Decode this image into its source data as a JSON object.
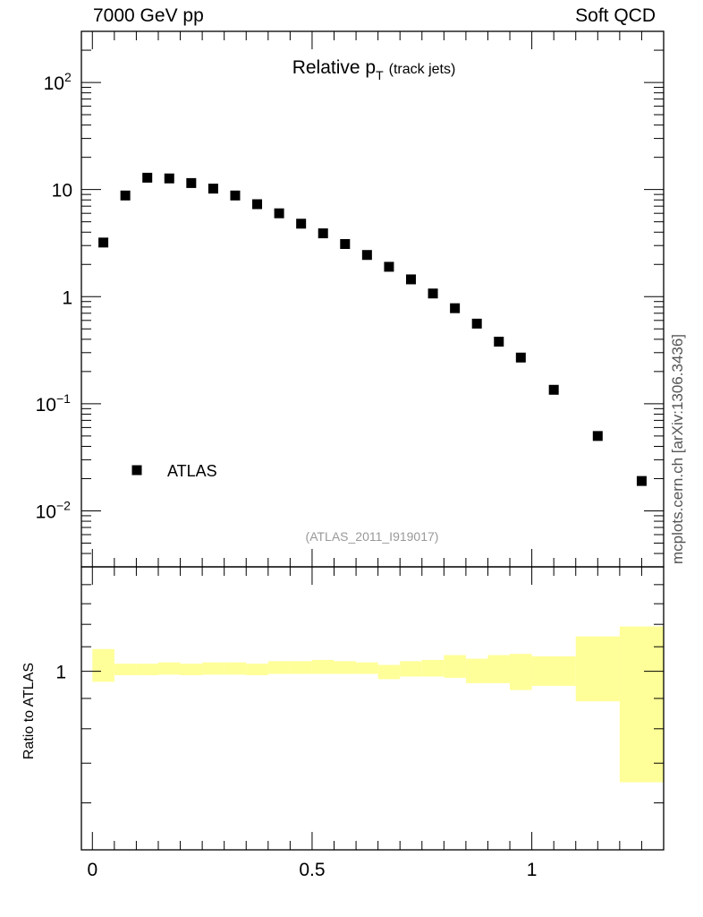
{
  "header": {
    "left": "7000 GeV pp",
    "right": "Soft QCD"
  },
  "side_label": "mcplots.cern.ch [arXiv:1306.3436]",
  "chart_data": [
    {
      "type": "scatter",
      "title": "Relative p",
      "title_subscript": "T",
      "title_suffix": "(track jets)",
      "watermark": "(ATLAS_2011_I919017)",
      "y_scale": "log",
      "ylim": [
        0.003,
        300
      ],
      "xlim": [
        -0.025,
        1.3
      ],
      "y_ticks": [
        {
          "value": 100,
          "base": "10",
          "exp": "2"
        },
        {
          "value": 10,
          "base": "10",
          "exp": ""
        },
        {
          "value": 1,
          "base": "1",
          "exp": ""
        },
        {
          "value": 0.1,
          "base": "10",
          "exp": "−1"
        },
        {
          "value": 0.01,
          "base": "10",
          "exp": "−2"
        }
      ],
      "legend": {
        "position": "bottom-left",
        "entries": [
          "ATLAS"
        ]
      },
      "series": [
        {
          "name": "ATLAS",
          "color": "#000000",
          "marker": "square",
          "x": [
            0.025,
            0.075,
            0.125,
            0.175,
            0.225,
            0.275,
            0.325,
            0.375,
            0.425,
            0.475,
            0.525,
            0.575,
            0.625,
            0.675,
            0.725,
            0.775,
            0.825,
            0.875,
            0.925,
            0.975,
            1.05,
            1.15,
            1.25
          ],
          "y": [
            3.2,
            8.8,
            12.9,
            12.7,
            11.5,
            10.2,
            8.8,
            7.3,
            6.0,
            4.8,
            3.9,
            3.1,
            2.45,
            1.9,
            1.45,
            1.07,
            0.78,
            0.56,
            0.38,
            0.27,
            0.135,
            0.05,
            0.019
          ]
        }
      ]
    },
    {
      "type": "area",
      "ylabel": "Ratio to ATLAS",
      "y_scale": "log",
      "ylim": [
        0.5,
        1.5
      ],
      "y_ticks": [
        {
          "value": 1,
          "label": "1"
        }
      ],
      "xlim": [
        -0.025,
        1.3
      ],
      "x_ticks": [
        {
          "value": 0,
          "label": "0"
        },
        {
          "value": 0.5,
          "label": "0.5"
        },
        {
          "value": 1,
          "label": "1"
        }
      ],
      "band_color": "#ffff99",
      "band": {
        "edges": [
          0,
          0.05,
          0.1,
          0.15,
          0.2,
          0.25,
          0.3,
          0.35,
          0.4,
          0.45,
          0.5,
          0.55,
          0.6,
          0.65,
          0.7,
          0.75,
          0.8,
          0.85,
          0.9,
          0.95,
          1.0,
          1.1,
          1.2,
          1.3
        ],
        "low": [
          0.96,
          0.985,
          0.985,
          0.987,
          0.985,
          0.987,
          0.987,
          0.985,
          0.99,
          0.99,
          0.99,
          0.99,
          0.99,
          0.97,
          0.98,
          0.98,
          0.975,
          0.955,
          0.955,
          0.93,
          0.945,
          0.89,
          0.65
        ],
        "high": [
          1.09,
          1.03,
          1.03,
          1.035,
          1.03,
          1.035,
          1.035,
          1.03,
          1.04,
          1.04,
          1.045,
          1.04,
          1.035,
          1.025,
          1.04,
          1.045,
          1.065,
          1.05,
          1.065,
          1.07,
          1.06,
          1.145,
          1.19
        ]
      }
    }
  ]
}
